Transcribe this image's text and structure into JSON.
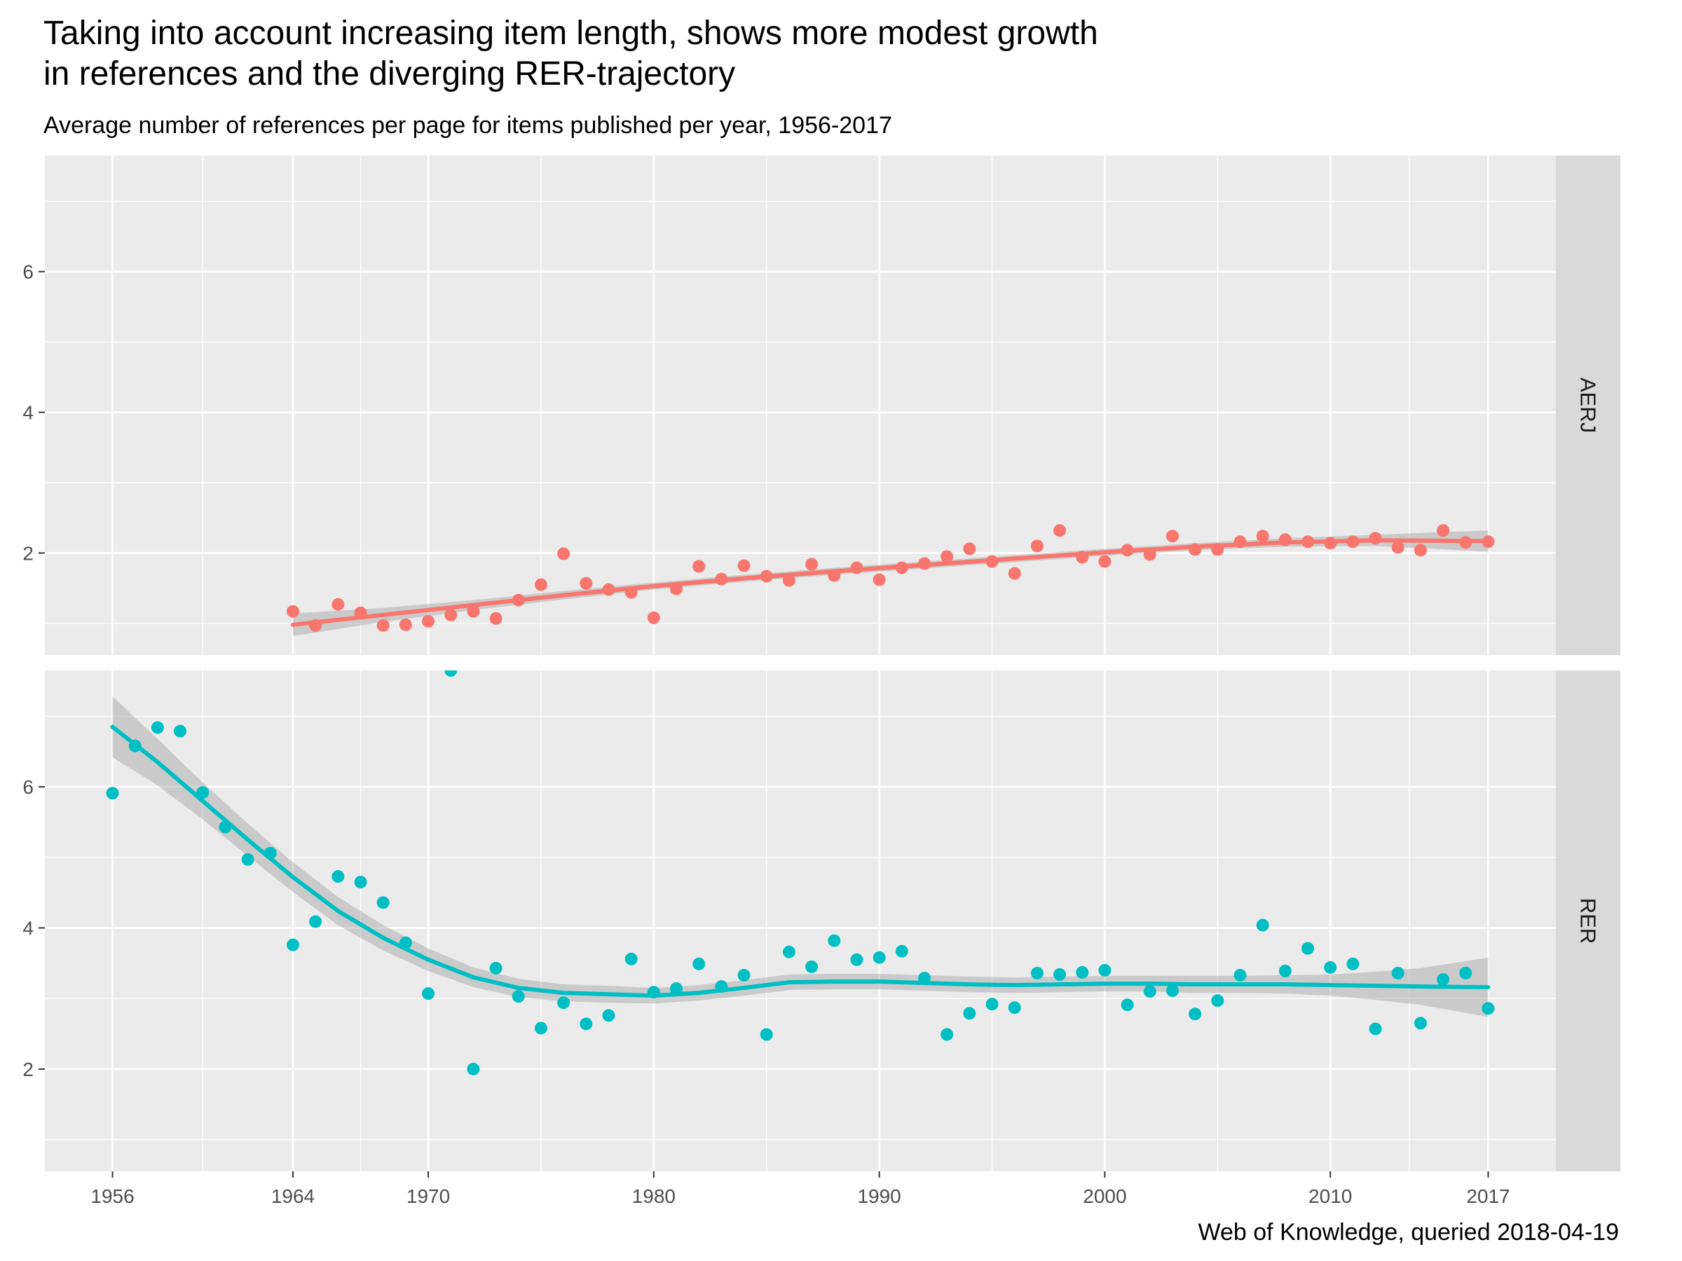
{
  "chart_data": {
    "type": "scatter",
    "title_lines": [
      "Taking into account increasing item length, shows more modest growth",
      "in references and the diverging RER-trajectory"
    ],
    "subtitle": "Average number of references per page for items published per year, 1956-2017",
    "caption": "Web of Knowledge, queried 2018-04-19",
    "xlabel": "",
    "ylabel": "",
    "x_ticks": [
      1956,
      1964,
      1970,
      1980,
      1990,
      2000,
      2010,
      2017
    ],
    "y_ticks": [
      2,
      4,
      6
    ],
    "xlim": [
      1953,
      2020
    ],
    "ylim": [
      0.55,
      7.65
    ],
    "grid": true,
    "legend": "none",
    "trend": "smoothed fit with grey confidence band",
    "facets": [
      {
        "name": "AERJ",
        "color": "#F8766D",
        "x": [
          1964,
          1965,
          1966,
          1967,
          1968,
          1969,
          1970,
          1971,
          1972,
          1973,
          1974,
          1975,
          1976,
          1977,
          1978,
          1979,
          1980,
          1981,
          1982,
          1983,
          1984,
          1985,
          1986,
          1987,
          1988,
          1989,
          1990,
          1991,
          1992,
          1993,
          1994,
          1995,
          1996,
          1997,
          1998,
          1999,
          2000,
          2001,
          2002,
          2003,
          2004,
          2005,
          2006,
          2007,
          2008,
          2009,
          2010,
          2011,
          2012,
          2013,
          2014,
          2015,
          2016,
          2017
        ],
        "y": [
          1.17,
          0.97,
          1.27,
          1.15,
          0.97,
          0.98,
          1.03,
          1.12,
          1.17,
          1.07,
          1.33,
          1.55,
          1.99,
          1.57,
          1.48,
          1.44,
          1.08,
          1.49,
          1.81,
          1.63,
          1.82,
          1.67,
          1.61,
          1.84,
          1.68,
          1.79,
          1.62,
          1.79,
          1.85,
          1.95,
          2.06,
          1.88,
          1.71,
          2.1,
          2.32,
          1.94,
          1.88,
          2.04,
          1.98,
          2.24,
          2.05,
          2.05,
          2.16,
          2.24,
          2.19,
          2.16,
          2.14,
          2.16,
          2.21,
          2.08,
          2.04,
          2.32,
          2.15,
          2.16
        ],
        "smooth": {
          "x": [
            1964,
            1968,
            1972,
            1976,
            1980,
            1984,
            1988,
            1992,
            1996,
            2000,
            2004,
            2008,
            2012,
            2017
          ],
          "y": [
            0.98,
            1.12,
            1.26,
            1.4,
            1.53,
            1.64,
            1.74,
            1.83,
            1.92,
            2.01,
            2.09,
            2.15,
            2.18,
            2.17
          ],
          "band": [
            0.16,
            0.1,
            0.07,
            0.06,
            0.05,
            0.05,
            0.05,
            0.05,
            0.05,
            0.05,
            0.05,
            0.06,
            0.08,
            0.15
          ]
        }
      },
      {
        "name": "RER",
        "color": "#00BFC4",
        "x": [
          1956,
          1957,
          1958,
          1959,
          1960,
          1961,
          1962,
          1963,
          1964,
          1965,
          1966,
          1967,
          1968,
          1969,
          1970,
          1971,
          1972,
          1973,
          1974,
          1975,
          1976,
          1977,
          1978,
          1979,
          1980,
          1981,
          1982,
          1983,
          1984,
          1985,
          1986,
          1987,
          1988,
          1989,
          1990,
          1991,
          1992,
          1993,
          1994,
          1995,
          1996,
          1997,
          1998,
          1999,
          2000,
          2001,
          2002,
          2003,
          2004,
          2005,
          2006,
          2007,
          2008,
          2009,
          2010,
          2011,
          2012,
          2013,
          2014,
          2015,
          2016,
          2017
        ],
        "y": [
          5.91,
          6.58,
          6.84,
          6.79,
          5.92,
          5.43,
          4.97,
          5.06,
          3.76,
          4.09,
          4.73,
          4.65,
          4.36,
          3.79,
          3.07,
          7.65,
          2.0,
          3.43,
          3.03,
          2.58,
          2.94,
          2.64,
          2.76,
          3.56,
          3.09,
          3.14,
          3.49,
          3.17,
          3.33,
          2.49,
          3.66,
          3.45,
          3.82,
          3.55,
          3.58,
          3.67,
          3.29,
          2.49,
          2.79,
          2.92,
          2.87,
          3.36,
          3.34,
          3.37,
          3.4,
          2.91,
          3.1,
          3.11,
          2.78,
          2.97,
          3.33,
          4.04,
          3.39,
          3.71,
          3.44,
          3.49,
          2.57,
          3.36,
          2.65,
          3.27,
          3.36,
          2.86
        ],
        "smooth": {
          "x": [
            1956,
            1958,
            1960,
            1962,
            1964,
            1966,
            1968,
            1970,
            1972,
            1974,
            1976,
            1978,
            1980,
            1982,
            1984,
            1986,
            1988,
            1990,
            1992,
            1994,
            1996,
            1998,
            2000,
            2002,
            2004,
            2006,
            2008,
            2010,
            2012,
            2014,
            2017
          ],
          "y": [
            6.85,
            6.35,
            5.8,
            5.25,
            4.72,
            4.24,
            3.86,
            3.55,
            3.3,
            3.15,
            3.08,
            3.06,
            3.04,
            3.08,
            3.15,
            3.23,
            3.24,
            3.24,
            3.22,
            3.2,
            3.19,
            3.2,
            3.21,
            3.21,
            3.2,
            3.2,
            3.2,
            3.19,
            3.18,
            3.17,
            3.16
          ],
          "band": [
            0.43,
            0.33,
            0.26,
            0.23,
            0.21,
            0.2,
            0.18,
            0.16,
            0.14,
            0.13,
            0.12,
            0.12,
            0.11,
            0.11,
            0.11,
            0.11,
            0.11,
            0.11,
            0.11,
            0.11,
            0.11,
            0.11,
            0.11,
            0.11,
            0.12,
            0.12,
            0.13,
            0.15,
            0.2,
            0.26,
            0.42
          ]
        }
      }
    ]
  },
  "colors": {
    "panel_bg": "#EBEBEB",
    "strip_bg": "#D9D9D9",
    "grid": "#FFFFFF",
    "band": "#999999",
    "tick": "#333333"
  }
}
